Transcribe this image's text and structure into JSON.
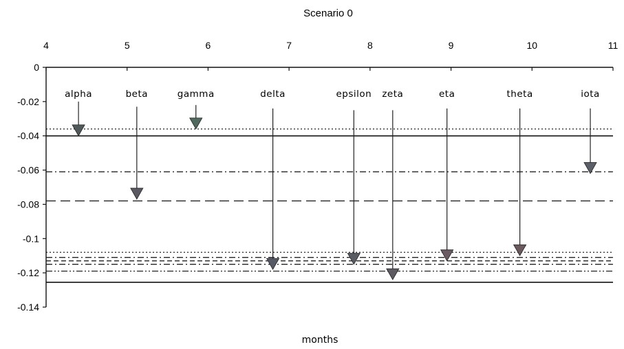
{
  "chart_data": {
    "type": "line",
    "title": "Scenario 0",
    "xlabel": "months",
    "ylabel": "",
    "xlim": [
      4,
      11
    ],
    "ylim": [
      -0.14,
      0
    ],
    "x_ticks": [
      4,
      5,
      6,
      7,
      8,
      9,
      10,
      11
    ],
    "y_ticks": [
      0,
      -0.02,
      -0.04,
      -0.06,
      -0.08,
      -0.1,
      -0.12,
      -0.14
    ],
    "x_tick_labels": [
      "4",
      "5",
      "6",
      "7",
      "8",
      "9",
      "10",
      "11"
    ],
    "y_tick_labels": [
      "0",
      "-0.02",
      "-0.04",
      "-0.06",
      "-0.08",
      "-0.1",
      "-0.12",
      "-0.14"
    ],
    "x_axis_position": "top",
    "grid": false,
    "levels": [
      {
        "y": -0.036,
        "style": "dotted"
      },
      {
        "y": -0.04,
        "style": "solid"
      },
      {
        "y": -0.061,
        "style": "dashdot"
      },
      {
        "y": -0.078,
        "style": "longdash"
      },
      {
        "y": -0.108,
        "style": "dotted"
      },
      {
        "y": -0.111,
        "style": "dashdot"
      },
      {
        "y": -0.113,
        "style": "dashed"
      },
      {
        "y": -0.115,
        "style": "dashdot"
      },
      {
        "y": -0.119,
        "style": "dashdotdot"
      },
      {
        "y": -0.1255,
        "style": "solid"
      }
    ],
    "annotations": [
      {
        "label": "alpha",
        "x": 4.4,
        "y_start": -0.02,
        "y_end": -0.04,
        "color": "#50585a"
      },
      {
        "label": "beta",
        "x": 5.12,
        "y_start": -0.023,
        "y_end": -0.077,
        "color": "#5a5860"
      },
      {
        "label": "gamma",
        "x": 5.85,
        "y_start": -0.022,
        "y_end": -0.036,
        "color": "#4e6a5e"
      },
      {
        "label": "delta",
        "x": 6.8,
        "y_start": -0.024,
        "y_end": -0.118,
        "color": "#555a66"
      },
      {
        "label": "epsilon",
        "x": 7.8,
        "y_start": -0.025,
        "y_end": -0.115,
        "color": "#5a5c64"
      },
      {
        "label": "zeta",
        "x": 8.28,
        "y_start": -0.025,
        "y_end": -0.124,
        "color": "#5d5a62"
      },
      {
        "label": "eta",
        "x": 8.95,
        "y_start": -0.024,
        "y_end": -0.113,
        "color": "#6a5a62"
      },
      {
        "label": "theta",
        "x": 9.85,
        "y_start": -0.024,
        "y_end": -0.11,
        "color": "#6a5a5e"
      },
      {
        "label": "iota",
        "x": 10.72,
        "y_start": -0.024,
        "y_end": -0.062,
        "color": "#5a5f68"
      }
    ]
  }
}
